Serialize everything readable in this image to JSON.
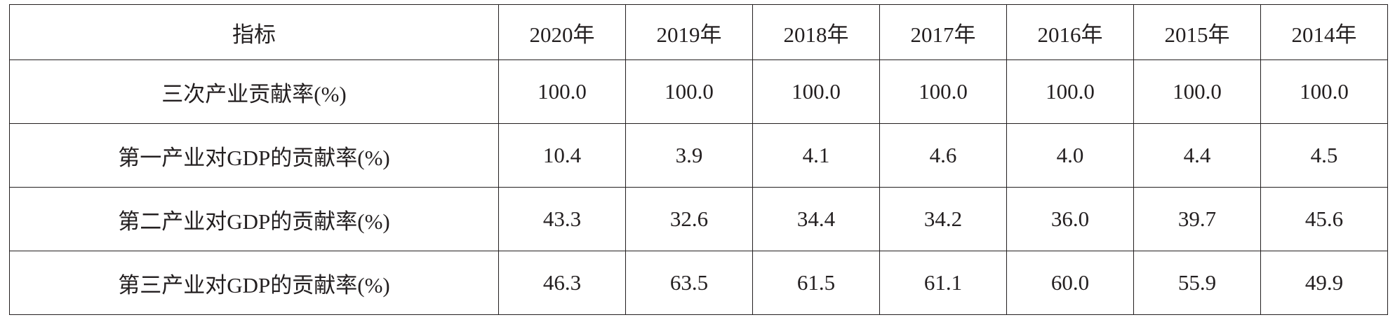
{
  "table": {
    "header": [
      "指标",
      "2020年",
      "2019年",
      "2018年",
      "2017年",
      "2016年",
      "2015年",
      "2014年"
    ],
    "rows": [
      [
        "三次产业贡献率(%)",
        "100.0",
        "100.0",
        "100.0",
        "100.0",
        "100.0",
        "100.0",
        "100.0"
      ],
      [
        "第一产业对GDP的贡献率(%)",
        "10.4",
        "3.9",
        "4.1",
        "4.6",
        "4.0",
        "4.4",
        "4.5"
      ],
      [
        "第二产业对GDP的贡献率(%)",
        "43.3",
        "32.6",
        "34.4",
        "34.2",
        "36.0",
        "39.7",
        "45.6"
      ],
      [
        "第三产业对GDP的贡献率(%)",
        "46.3",
        "63.5",
        "61.5",
        "61.1",
        "60.0",
        "55.9",
        "49.9"
      ]
    ]
  }
}
